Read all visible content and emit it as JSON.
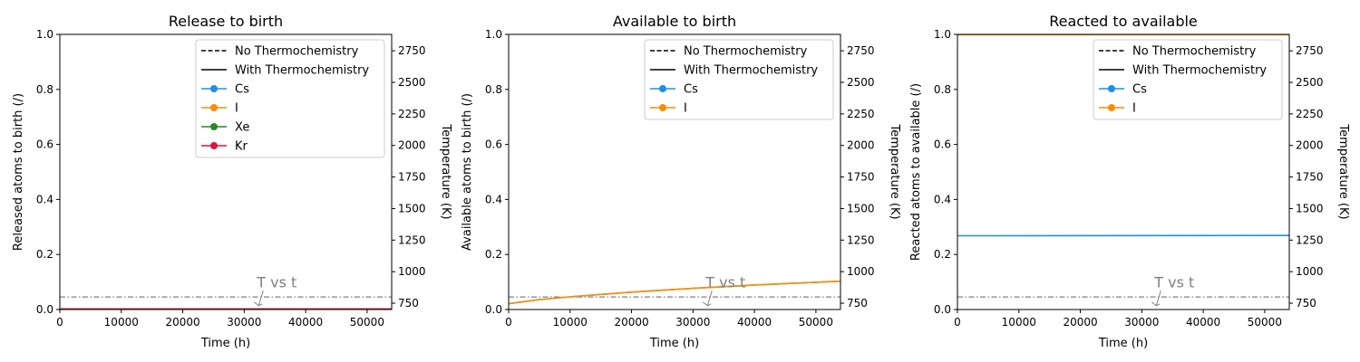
{
  "chart_data": [
    {
      "type": "line",
      "title": "Release to birth",
      "xlabel": "Time (h)",
      "ylabel": "Released atoms to birth (/)",
      "y2label": "Temperature (K)",
      "xlim": [
        0,
        54000
      ],
      "ylim": [
        0,
        1
      ],
      "y2lim": [
        700,
        2880
      ],
      "xticks": [
        0,
        10000,
        20000,
        30000,
        40000,
        50000
      ],
      "yticks": [
        0.0,
        0.2,
        0.4,
        0.6,
        0.8,
        1.0
      ],
      "y2ticks": [
        750,
        1000,
        1250,
        1500,
        1750,
        2000,
        2250,
        2500,
        2750
      ],
      "legend_position": "top-right",
      "legend": [
        {
          "label": "No Thermochemistry",
          "style": "dashed",
          "color": "#000000"
        },
        {
          "label": "With Thermochemistry",
          "style": "solid",
          "color": "#000000"
        },
        {
          "label": "Cs",
          "style": "marker",
          "color": "#1f8fe6"
        },
        {
          "label": "I",
          "style": "marker",
          "color": "#ff8c00"
        },
        {
          "label": "Xe",
          "style": "marker",
          "color": "#228b22"
        },
        {
          "label": "Kr",
          "style": "marker",
          "color": "#dc143c"
        }
      ],
      "series": [
        {
          "name": "Cs",
          "color": "#1f8fe6",
          "style": "solid",
          "x": [
            0,
            54000
          ],
          "y": [
            0.002,
            0.002
          ]
        },
        {
          "name": "I",
          "color": "#ff8c00",
          "style": "solid",
          "x": [
            0,
            54000
          ],
          "y": [
            0.002,
            0.002
          ]
        },
        {
          "name": "Xe",
          "color": "#228b22",
          "style": "solid",
          "x": [
            0,
            54000
          ],
          "y": [
            0.002,
            0.002
          ]
        },
        {
          "name": "Kr",
          "color": "#dc143c",
          "style": "solid",
          "x": [
            0,
            54000
          ],
          "y": [
            0.002,
            0.002
          ]
        }
      ],
      "temperature": {
        "color": "#808080",
        "style": "dashdot",
        "x": [
          0,
          54000
        ],
        "y": [
          800,
          800
        ]
      },
      "annotation": {
        "text": "T vs t",
        "x": 32500,
        "y": 0.055
      }
    },
    {
      "type": "line",
      "title": "Available to birth",
      "xlabel": "Time (h)",
      "ylabel": "Available atoms to birth (/)",
      "y2label": "Temperature (K)",
      "xlim": [
        0,
        54000
      ],
      "ylim": [
        0,
        1
      ],
      "y2lim": [
        700,
        2880
      ],
      "xticks": [
        0,
        10000,
        20000,
        30000,
        40000,
        50000
      ],
      "yticks": [
        0.0,
        0.2,
        0.4,
        0.6,
        0.8,
        1.0
      ],
      "y2ticks": [
        750,
        1000,
        1250,
        1500,
        1750,
        2000,
        2250,
        2500,
        2750
      ],
      "legend_position": "top-right",
      "legend": [
        {
          "label": "No Thermochemistry",
          "style": "dashed",
          "color": "#000000"
        },
        {
          "label": "With Thermochemistry",
          "style": "solid",
          "color": "#000000"
        },
        {
          "label": "Cs",
          "style": "marker",
          "color": "#1f8fe6"
        },
        {
          "label": "I",
          "style": "marker",
          "color": "#ff8c00"
        }
      ],
      "series": [
        {
          "name": "Cs",
          "color": "#1f8fe6",
          "style": "solid",
          "x": [
            0,
            5000,
            10000,
            15000,
            20000,
            25000,
            30000,
            35000,
            40000,
            45000,
            50000,
            54000
          ],
          "y": [
            0.021,
            0.036,
            0.046,
            0.055,
            0.063,
            0.07,
            0.077,
            0.083,
            0.089,
            0.094,
            0.099,
            0.103
          ]
        },
        {
          "name": "I",
          "color": "#ff8c00",
          "style": "solid",
          "x": [
            0,
            5000,
            10000,
            15000,
            20000,
            25000,
            30000,
            35000,
            40000,
            45000,
            50000,
            54000
          ],
          "y": [
            0.021,
            0.036,
            0.046,
            0.055,
            0.063,
            0.07,
            0.077,
            0.083,
            0.089,
            0.094,
            0.099,
            0.103
          ]
        }
      ],
      "temperature": {
        "color": "#808080",
        "style": "dashdot",
        "x": [
          0,
          54000
        ],
        "y": [
          800,
          800
        ]
      },
      "annotation": {
        "text": "T vs t",
        "x": 32500,
        "y": 0.055
      }
    },
    {
      "type": "line",
      "title": "Reacted to available",
      "xlabel": "Time (h)",
      "ylabel": "Reacted atoms to available (/)",
      "y2label": "Temperature (K)",
      "xlim": [
        0,
        54000
      ],
      "ylim": [
        0,
        1
      ],
      "y2lim": [
        700,
        2880
      ],
      "xticks": [
        0,
        10000,
        20000,
        30000,
        40000,
        50000
      ],
      "yticks": [
        0.0,
        0.2,
        0.4,
        0.6,
        0.8,
        1.0
      ],
      "y2ticks": [
        750,
        1000,
        1250,
        1500,
        1750,
        2000,
        2250,
        2500,
        2750
      ],
      "legend_position": "top-right",
      "legend": [
        {
          "label": "No Thermochemistry",
          "style": "dashed",
          "color": "#000000"
        },
        {
          "label": "With Thermochemistry",
          "style": "solid",
          "color": "#000000"
        },
        {
          "label": "Cs",
          "style": "marker",
          "color": "#1f8fe6"
        },
        {
          "label": "I",
          "style": "marker",
          "color": "#ff8c00"
        }
      ],
      "series": [
        {
          "name": "Cs",
          "color": "#1f8fe6",
          "style": "solid",
          "x": [
            0,
            54000
          ],
          "y": [
            0.268,
            0.269
          ]
        },
        {
          "name": "I",
          "color": "#ff8c00",
          "style": "solid",
          "x": [
            0,
            54000
          ],
          "y": [
            0.999,
            0.999
          ]
        }
      ],
      "temperature": {
        "color": "#808080",
        "style": "dashdot",
        "x": [
          0,
          54000
        ],
        "y": [
          800,
          800
        ]
      },
      "annotation": {
        "text": "T vs t",
        "x": 32500,
        "y": 0.055
      }
    }
  ]
}
